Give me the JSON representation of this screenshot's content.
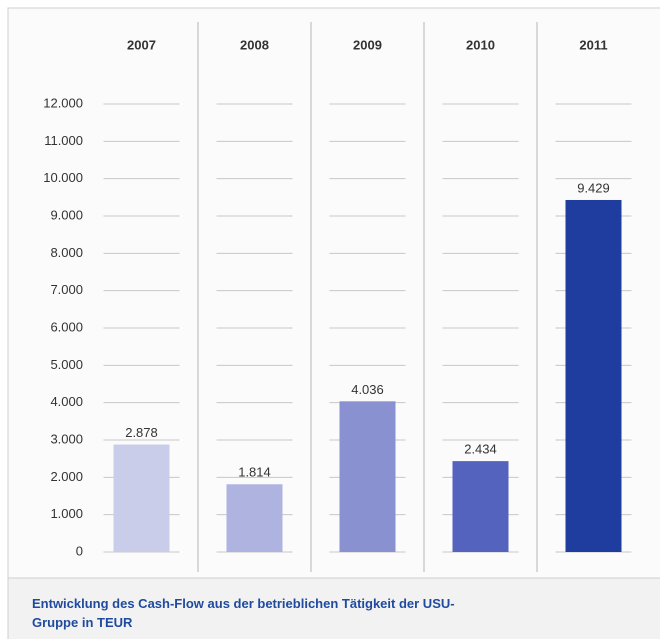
{
  "chart_data": {
    "type": "bar",
    "title": "Entwicklung des Cash-Flow aus der betrieblichen Tätigkeit der USU-Gruppe in TEUR",
    "categories": [
      "2007",
      "2008",
      "2009",
      "2010",
      "2011"
    ],
    "values": [
      2878,
      1814,
      4036,
      2434,
      9429
    ],
    "value_labels": [
      "2.878",
      "1.814",
      "4.036",
      "2.434",
      "9.429"
    ],
    "colors": [
      "#cacdea",
      "#aeb3e0",
      "#8a91d1",
      "#5463bd",
      "#1e3d9e"
    ],
    "ylim": [
      0,
      12000
    ],
    "yticks": [
      0,
      {
        "value": 1000,
        "label": "1.000"
      },
      {
        "value": 2000,
        "label": "2.000"
      },
      {
        "value": 3000,
        "label": "3.000"
      },
      {
        "value": 4000,
        "label": "4.000"
      },
      {
        "value": 5000,
        "label": "5.000"
      },
      {
        "value": 6000,
        "label": "6.000"
      },
      {
        "value": 7000,
        "label": "7.000"
      },
      {
        "value": 8000,
        "label": "8.000"
      },
      {
        "value": 9000,
        "label": "9.000"
      },
      {
        "value": 10000,
        "label": "10.000"
      },
      {
        "value": 11000,
        "label": "11.000"
      },
      {
        "value": 12000,
        "label": "12.000"
      }
    ],
    "grid": true
  }
}
